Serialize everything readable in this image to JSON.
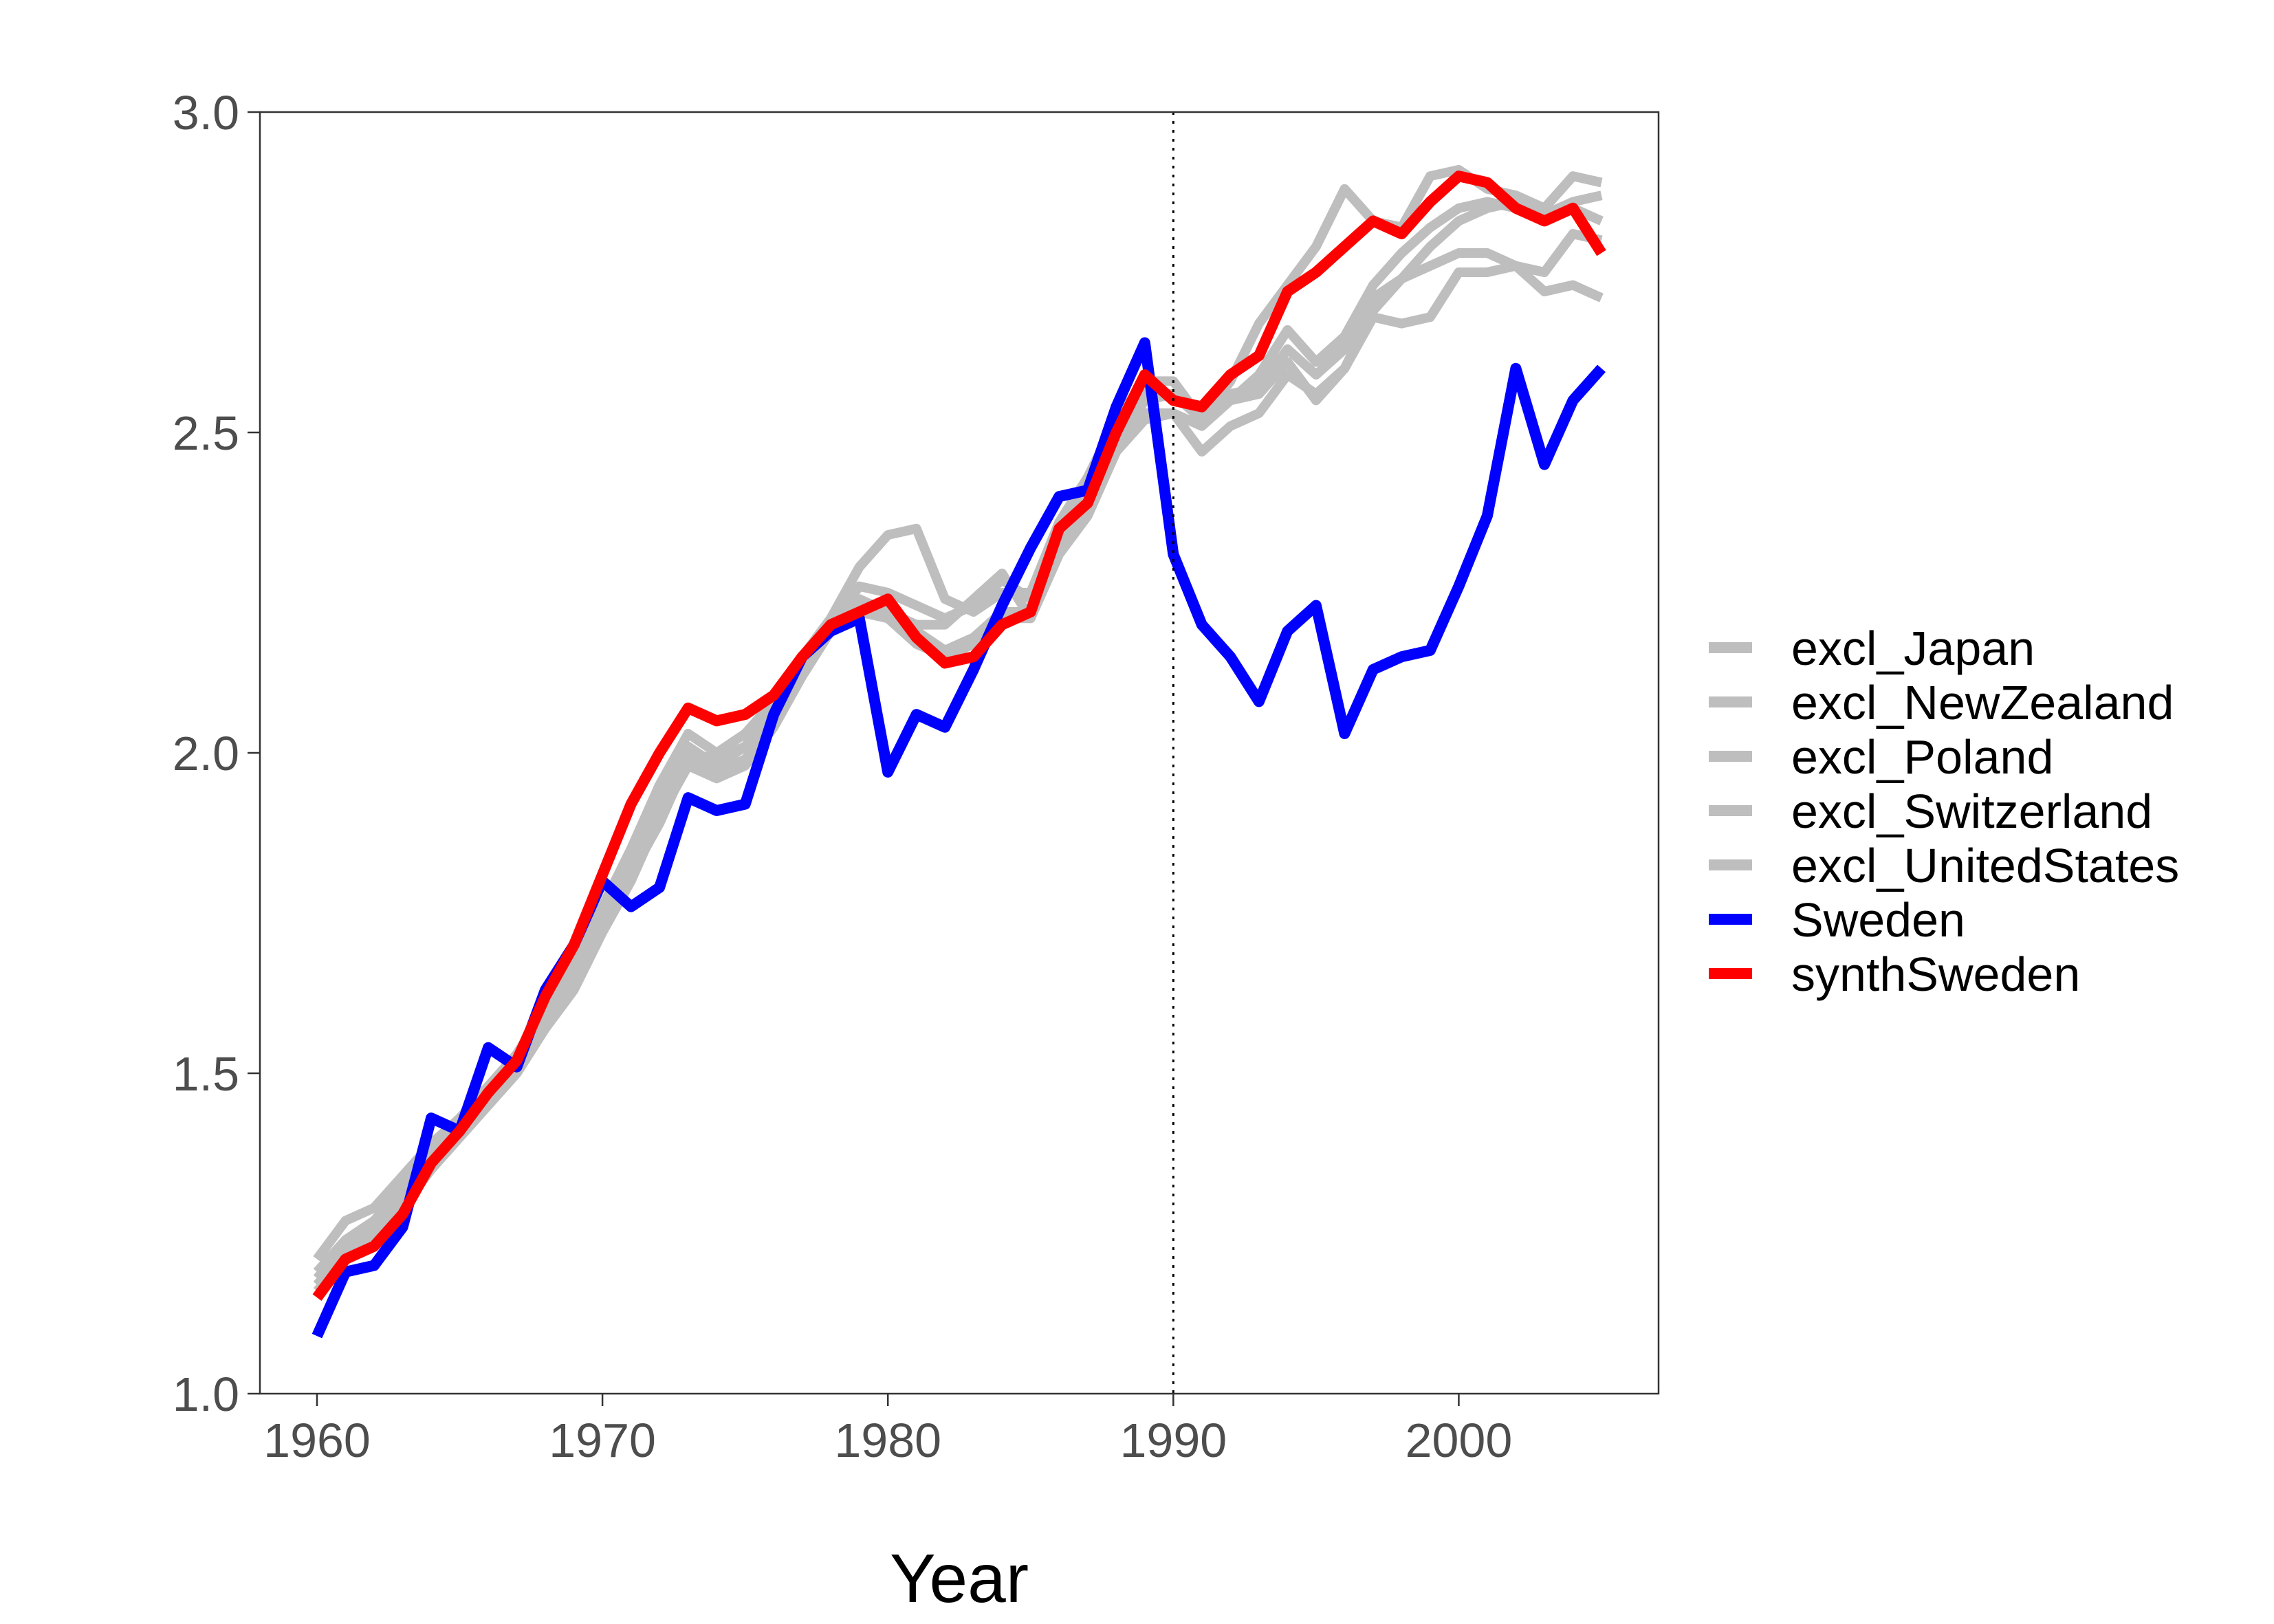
{
  "chart_data": {
    "type": "line",
    "title": "",
    "xlabel": "Year",
    "ylabel": "",
    "xlim": [
      1958,
      2007
    ],
    "ylim": [
      1.0,
      3.0
    ],
    "x_ticks": [
      1960,
      1970,
      1980,
      1990,
      2000
    ],
    "x_tick_labels": [
      "1960",
      "1970",
      "1980",
      "1990",
      "2000"
    ],
    "y_ticks": [
      1.0,
      1.5,
      2.0,
      2.5,
      3.0
    ],
    "y_tick_labels": [
      "1.0",
      "1.5",
      "2.0",
      "2.5",
      "3.0"
    ],
    "grid": false,
    "legend_position": "right",
    "vline": {
      "x": 1990,
      "style": "dotted"
    },
    "years": [
      1960,
      1961,
      1962,
      1963,
      1964,
      1965,
      1966,
      1967,
      1968,
      1969,
      1970,
      1971,
      1972,
      1973,
      1974,
      1975,
      1976,
      1977,
      1978,
      1979,
      1980,
      1981,
      1982,
      1983,
      1984,
      1985,
      1986,
      1987,
      1988,
      1989,
      1990,
      1991,
      1992,
      1993,
      1994,
      1995,
      1996,
      1997,
      1998,
      1999,
      2000,
      2001,
      2002,
      2003,
      2004,
      2005
    ],
    "series": [
      {
        "name": "excl_Japan",
        "color": "#bebebe",
        "values": [
          1.21,
          1.27,
          1.29,
          1.34,
          1.39,
          1.43,
          1.48,
          1.53,
          1.6,
          1.67,
          1.76,
          1.85,
          1.95,
          2.03,
          2.0,
          2.03,
          2.08,
          2.15,
          2.21,
          2.29,
          2.34,
          2.35,
          2.24,
          2.22,
          2.25,
          2.25,
          2.36,
          2.43,
          2.52,
          2.58,
          2.58,
          2.52,
          2.56,
          2.57,
          2.63,
          2.59,
          2.63,
          2.71,
          2.74,
          2.76,
          2.78,
          2.78,
          2.76,
          2.75,
          2.81,
          2.8
        ]
      },
      {
        "name": "excl_NewZealand",
        "color": "#bebebe",
        "values": [
          1.18,
          1.23,
          1.26,
          1.31,
          1.37,
          1.41,
          1.47,
          1.53,
          1.59,
          1.66,
          1.74,
          1.83,
          1.92,
          2.01,
          1.98,
          2.01,
          2.07,
          2.14,
          2.2,
          2.24,
          2.22,
          2.19,
          2.16,
          2.18,
          2.22,
          2.22,
          2.32,
          2.39,
          2.48,
          2.55,
          2.56,
          2.52,
          2.58,
          2.67,
          2.73,
          2.79,
          2.88,
          2.83,
          2.82,
          2.9,
          2.91,
          2.88,
          2.87,
          2.85,
          2.9,
          2.89
        ]
      },
      {
        "name": "excl_Poland",
        "color": "#bebebe",
        "values": [
          1.17,
          1.22,
          1.25,
          1.3,
          1.36,
          1.41,
          1.46,
          1.51,
          1.58,
          1.64,
          1.73,
          1.81,
          1.89,
          1.99,
          1.97,
          1.99,
          2.05,
          2.13,
          2.19,
          2.23,
          2.22,
          2.2,
          2.2,
          2.24,
          2.28,
          2.21,
          2.33,
          2.4,
          2.49,
          2.53,
          2.53,
          2.47,
          2.51,
          2.53,
          2.59,
          2.56,
          2.6,
          2.68,
          2.67,
          2.68,
          2.75,
          2.75,
          2.76,
          2.72,
          2.73,
          2.71
        ]
      },
      {
        "name": "excl_Switzerland",
        "color": "#bebebe",
        "values": [
          1.19,
          1.24,
          1.27,
          1.32,
          1.38,
          1.42,
          1.47,
          1.52,
          1.59,
          1.65,
          1.75,
          1.83,
          1.91,
          2.0,
          1.99,
          2.01,
          2.06,
          2.14,
          2.2,
          2.26,
          2.25,
          2.23,
          2.21,
          2.23,
          2.27,
          2.24,
          2.34,
          2.41,
          2.5,
          2.56,
          2.56,
          2.53,
          2.55,
          2.59,
          2.66,
          2.61,
          2.65,
          2.73,
          2.78,
          2.82,
          2.85,
          2.86,
          2.85,
          2.84,
          2.86,
          2.87
        ]
      },
      {
        "name": "excl_UnitedStates",
        "color": "#bebebe",
        "values": [
          1.16,
          1.21,
          1.24,
          1.29,
          1.35,
          1.4,
          1.45,
          1.5,
          1.57,
          1.63,
          1.72,
          1.8,
          1.9,
          1.98,
          1.96,
          1.98,
          2.04,
          2.12,
          2.19,
          2.22,
          2.21,
          2.17,
          2.15,
          2.17,
          2.21,
          2.21,
          2.31,
          2.37,
          2.47,
          2.52,
          2.53,
          2.51,
          2.55,
          2.56,
          2.61,
          2.55,
          2.6,
          2.69,
          2.74,
          2.79,
          2.83,
          2.85,
          2.86,
          2.84,
          2.85,
          2.83
        ]
      },
      {
        "name": "Sweden",
        "color": "#0000ff",
        "values": [
          1.09,
          1.19,
          1.2,
          1.26,
          1.43,
          1.41,
          1.54,
          1.51,
          1.63,
          1.7,
          1.8,
          1.76,
          1.79,
          1.93,
          1.91,
          1.92,
          2.06,
          2.15,
          2.19,
          2.21,
          1.97,
          2.06,
          2.04,
          2.13,
          2.23,
          2.32,
          2.4,
          2.41,
          2.54,
          2.64,
          2.31,
          2.2,
          2.15,
          2.08,
          2.19,
          2.23,
          2.03,
          2.13,
          2.15,
          2.16,
          2.26,
          2.37,
          2.6,
          2.45,
          2.55,
          2.6
        ]
      },
      {
        "name": "synthSweden",
        "color": "#ff0000",
        "values": [
          1.15,
          1.21,
          1.23,
          1.28,
          1.36,
          1.41,
          1.47,
          1.52,
          1.62,
          1.7,
          1.81,
          1.92,
          2.0,
          2.07,
          2.05,
          2.06,
          2.09,
          2.15,
          2.2,
          2.22,
          2.24,
          2.18,
          2.14,
          2.15,
          2.2,
          2.22,
          2.35,
          2.39,
          2.5,
          2.59,
          2.55,
          2.54,
          2.59,
          2.62,
          2.72,
          2.75,
          2.79,
          2.83,
          2.81,
          2.86,
          2.9,
          2.89,
          2.85,
          2.83,
          2.85,
          2.78
        ]
      }
    ]
  }
}
